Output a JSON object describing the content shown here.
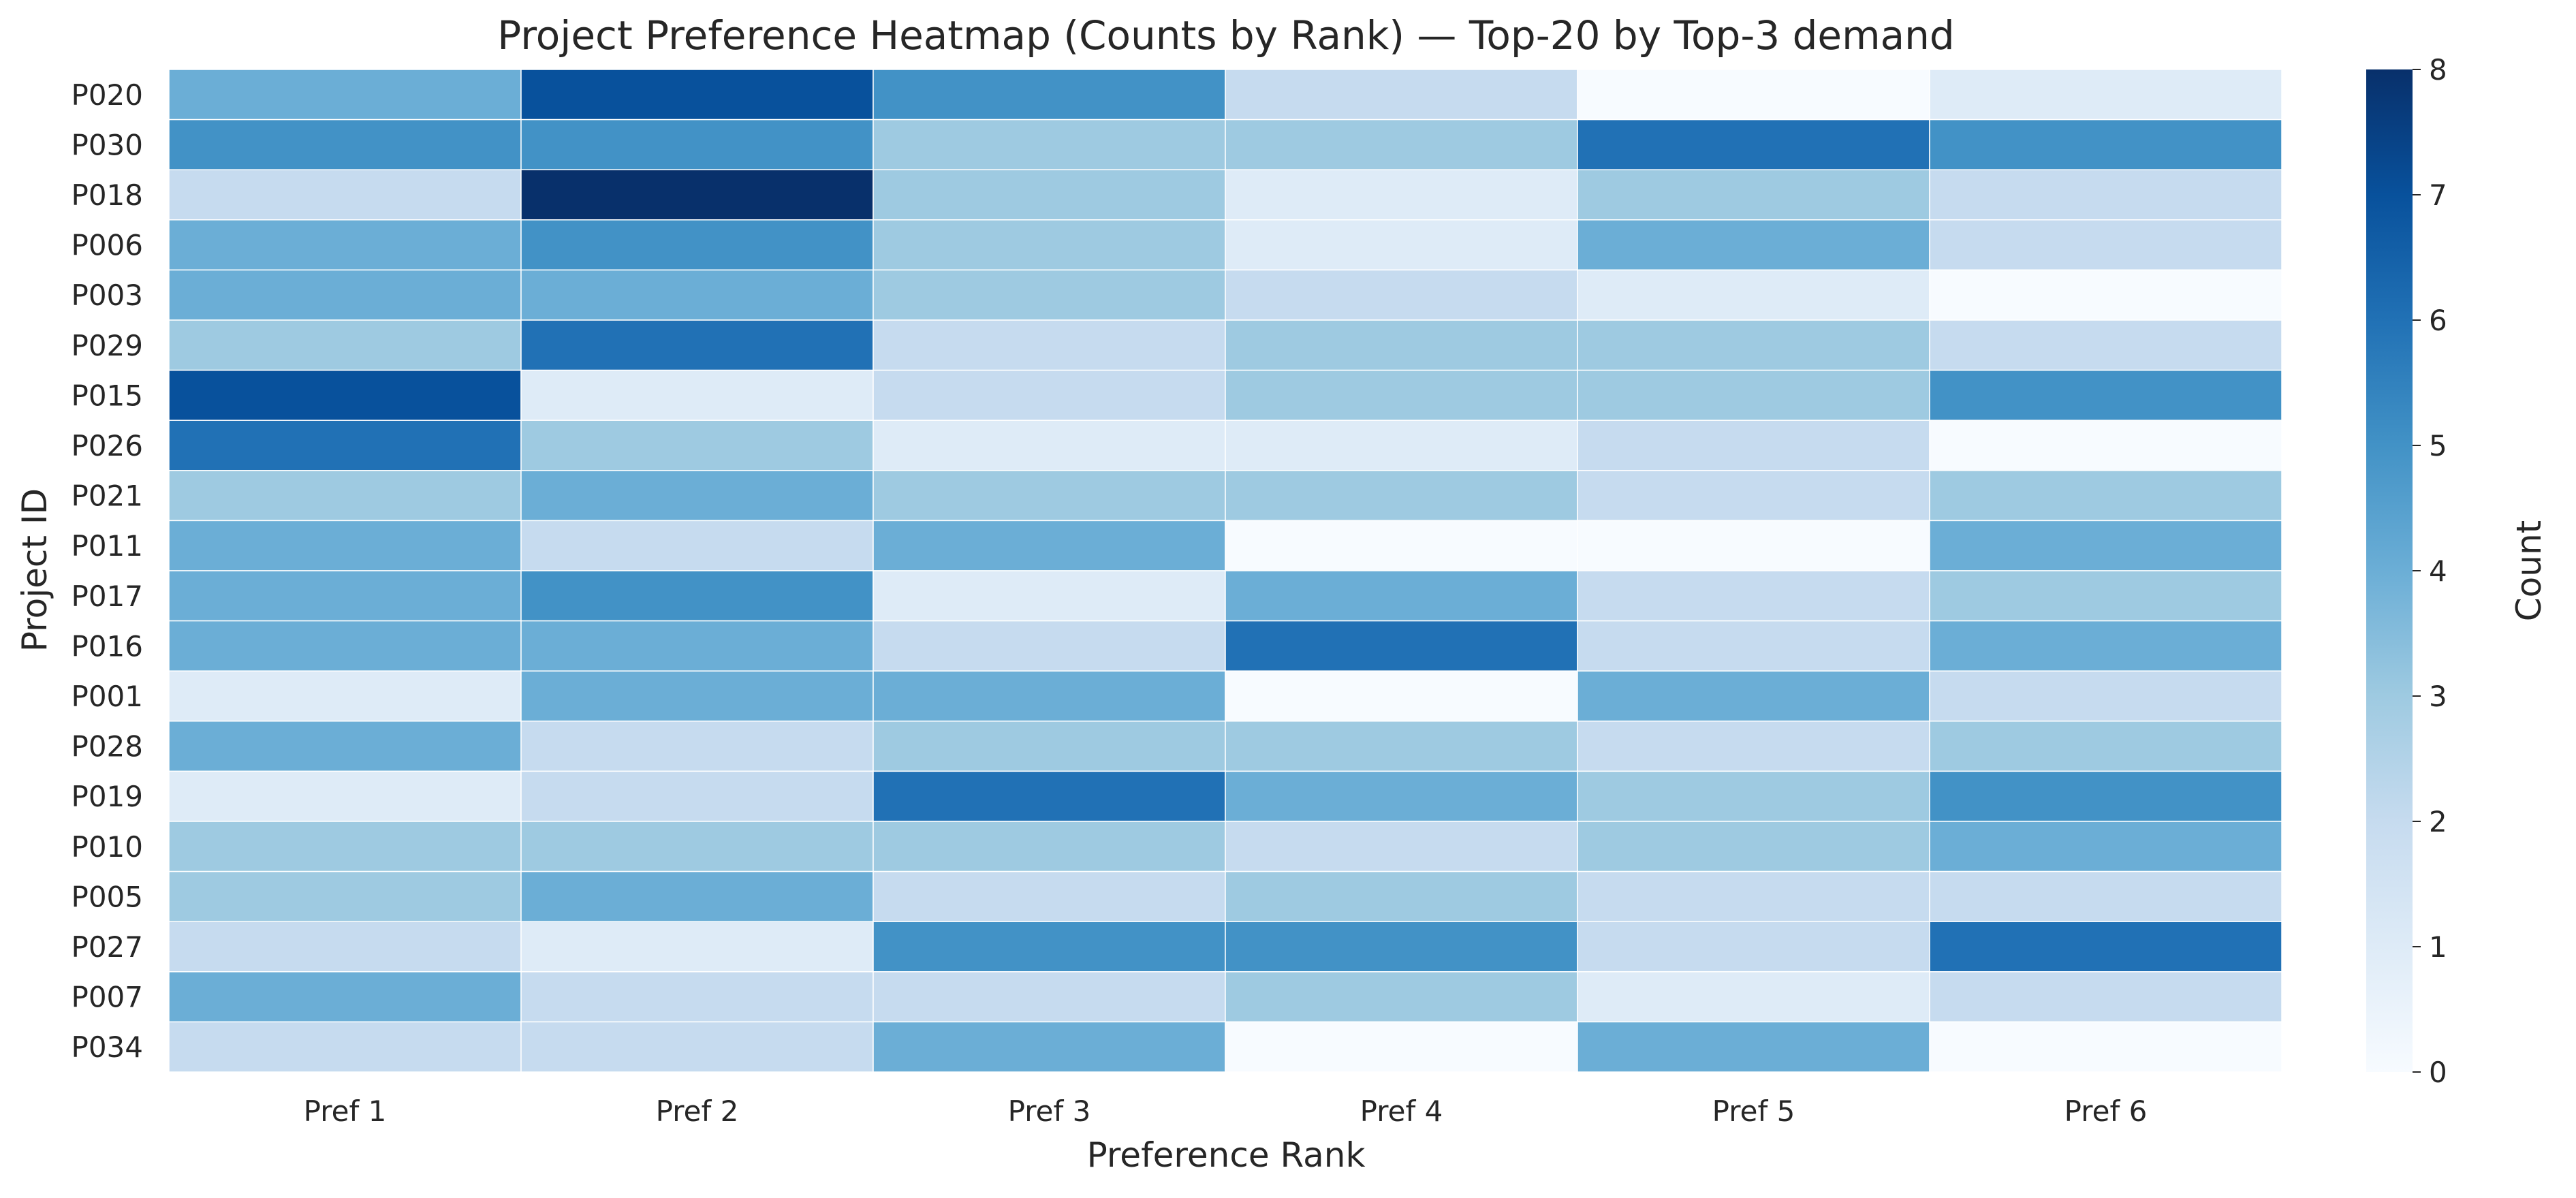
{
  "chart_data": {
    "type": "heatmap",
    "title": "Project Preference Heatmap (Counts by Rank) — Top-20 by Top-3 demand",
    "xlabel": "Preference Rank",
    "ylabel": "Project ID",
    "x": [
      "Pref 1",
      "Pref 2",
      "Pref 3",
      "Pref 4",
      "Pref 5",
      "Pref 6"
    ],
    "y": [
      "P020",
      "P030",
      "P018",
      "P006",
      "P003",
      "P029",
      "P015",
      "P026",
      "P021",
      "P011",
      "P017",
      "P016",
      "P001",
      "P028",
      "P019",
      "P010",
      "P005",
      "P027",
      "P007",
      "P034"
    ],
    "values": [
      [
        4,
        7,
        5,
        2,
        0,
        1
      ],
      [
        5,
        5,
        3,
        3,
        6,
        5
      ],
      [
        2,
        8,
        3,
        1,
        3,
        2
      ],
      [
        4,
        5,
        3,
        1,
        4,
        2
      ],
      [
        4,
        4,
        3,
        2,
        1,
        0
      ],
      [
        3,
        6,
        2,
        3,
        3,
        2
      ],
      [
        7,
        1,
        2,
        3,
        3,
        5
      ],
      [
        6,
        3,
        1,
        1,
        2,
        0
      ],
      [
        3,
        4,
        3,
        3,
        2,
        3
      ],
      [
        4,
        2,
        4,
        0,
        0,
        4
      ],
      [
        4,
        5,
        1,
        4,
        2,
        3
      ],
      [
        4,
        4,
        2,
        6,
        2,
        4
      ],
      [
        1,
        4,
        4,
        0,
        4,
        2
      ],
      [
        4,
        2,
        3,
        3,
        2,
        3
      ],
      [
        1,
        2,
        6,
        4,
        3,
        5
      ],
      [
        3,
        3,
        3,
        2,
        3,
        4
      ],
      [
        3,
        4,
        2,
        3,
        2,
        2
      ],
      [
        2,
        1,
        5,
        5,
        2,
        6
      ],
      [
        4,
        2,
        2,
        3,
        1,
        2
      ],
      [
        2,
        2,
        4,
        0,
        4,
        0
      ]
    ],
    "colorbar": {
      "label": "Count",
      "range": [
        0,
        8
      ],
      "ticks": [
        "0",
        "1",
        "2",
        "3",
        "4",
        "5",
        "6",
        "7",
        "8"
      ],
      "colormap": "Blues"
    }
  }
}
